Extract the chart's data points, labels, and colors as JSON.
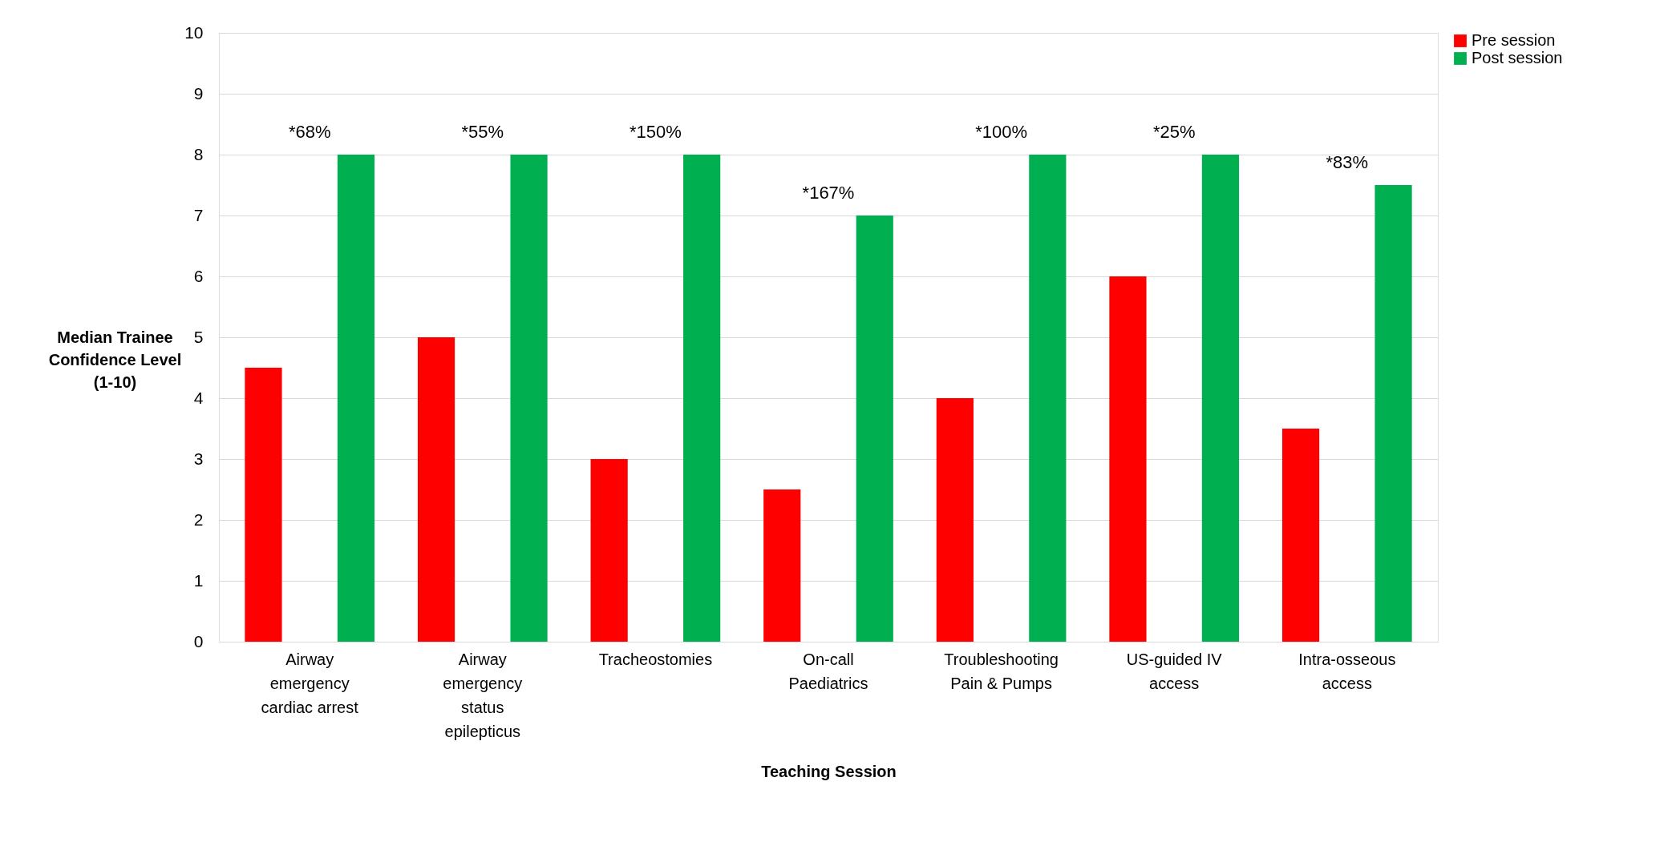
{
  "chart_data": {
    "type": "bar",
    "xlabel": "Teaching Session",
    "ylabel": "Median Trainee Confidence Level (1-10)",
    "categories": [
      "Airway emergency cardiac arrest",
      "Airway emergency status epilepticus",
      "Tracheostomies",
      "On-call Paediatrics",
      "Troubleshooting Pain & Pumps",
      "US-guided IV access",
      "Intra-osseous access"
    ],
    "series": [
      {
        "name": "Pre session",
        "color": "#ff0000",
        "values": [
          4.5,
          5,
          3,
          2.5,
          4,
          6,
          3.5
        ]
      },
      {
        "name": "Post session",
        "color": "#00b050",
        "values": [
          8,
          8,
          8,
          7,
          8,
          8,
          7.5
        ]
      }
    ],
    "annotations": [
      "*68%",
      "*55%",
      "*150%",
      "*167%",
      "*100%",
      "*25%",
      "*83%"
    ],
    "ylim": [
      0,
      10
    ],
    "yticks": [
      0,
      1,
      2,
      3,
      4,
      5,
      6,
      7,
      8,
      9,
      10
    ],
    "grid": "y",
    "legend": "right"
  }
}
